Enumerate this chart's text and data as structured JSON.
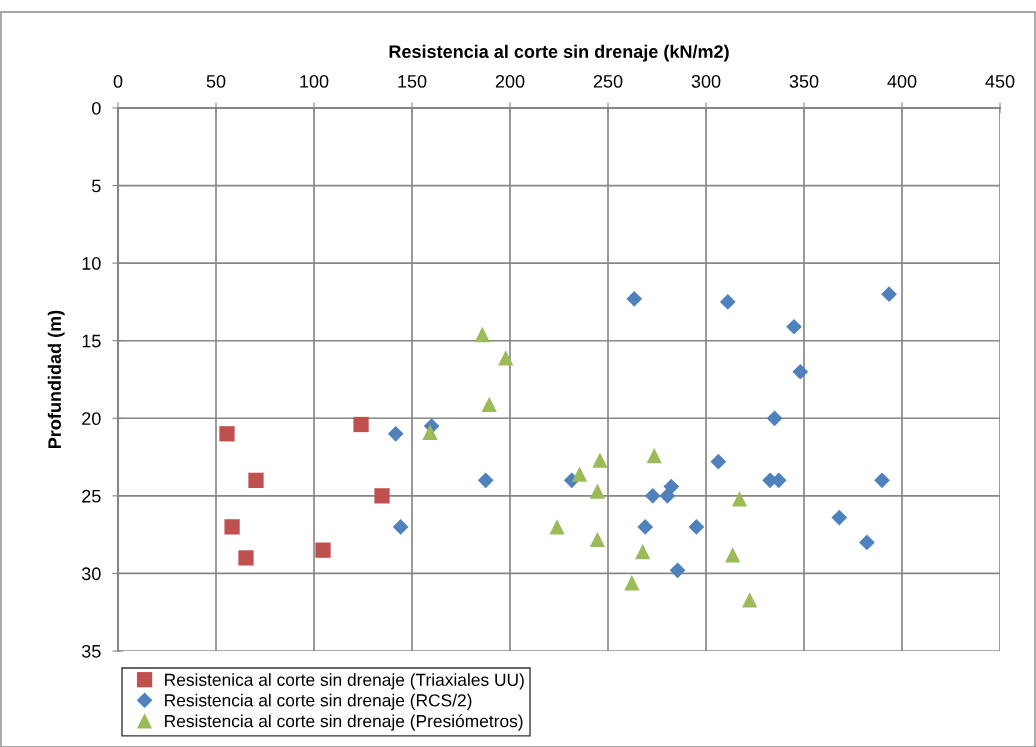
{
  "chart_data": {
    "type": "scatter",
    "xlabel": "Resistencia al corte sin drenaje (kN/m2)",
    "ylabel": "Profundidad (m)",
    "xlim": [
      0,
      450
    ],
    "xticks": [
      0,
      50,
      100,
      150,
      200,
      250,
      300,
      350,
      400,
      450
    ],
    "ylim": [
      35,
      0
    ],
    "yticks": [
      0,
      5,
      10,
      15,
      20,
      25,
      30,
      35
    ],
    "grid": true,
    "legend": "bottom",
    "series": [
      {
        "name": "Resistenica al corte sin drenaje (Triaxiales UU)",
        "color": "#c0504d",
        "marker": "square",
        "x": [
          55.6,
          70.4,
          58.2,
          65.3,
          104.6,
          124,
          134.7
        ],
        "values": [
          21.0,
          24.0,
          27.0,
          29.0,
          28.5,
          20.4,
          25.0
        ]
      },
      {
        "name": "Resistencia al corte sin drenaje (RCS/2)",
        "color": "#4f81bd",
        "marker": "diamond",
        "x": [
          160,
          141.7,
          144.2,
          187.6,
          263.4,
          311.1,
          393.4,
          344.9,
          348.1,
          335.0,
          306.3,
          231.5,
          282.3,
          272.8,
          280.3,
          332.7,
          337.1,
          389.8,
          269.0,
          295.1,
          368.0,
          382.1,
          285.5
        ],
        "values": [
          20.5,
          21.0,
          27.0,
          24.0,
          12.3,
          12.5,
          12.0,
          14.1,
          17.0,
          20.0,
          22.8,
          24.0,
          24.4,
          25.0,
          25.0,
          24.0,
          24.0,
          24.0,
          27.0,
          27.0,
          26.4,
          28.0,
          29.8
        ]
      },
      {
        "name": "Resistencia al corte sin drenaje (Presiómetros)",
        "color": "#9bbb59",
        "marker": "triangle",
        "x": [
          185.9,
          197.8,
          189.4,
          159.2,
          245.9,
          273.6,
          235.5,
          244.6,
          317.1,
          224.0,
          244.6,
          267.7,
          313.6,
          262.2,
          322.3
        ],
        "values": [
          14.6,
          16.1,
          19.1,
          20.9,
          22.7,
          22.4,
          23.6,
          24.7,
          25.2,
          27.0,
          27.8,
          28.6,
          28.8,
          30.6,
          31.7
        ]
      }
    ]
  }
}
